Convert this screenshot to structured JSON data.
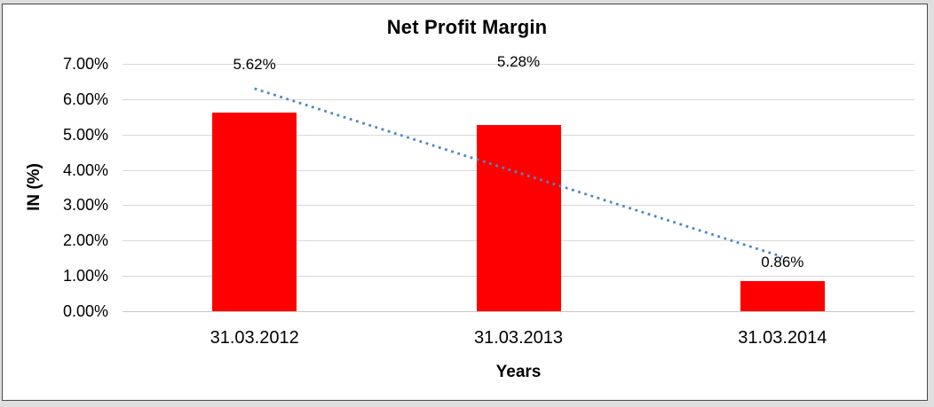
{
  "chart_data": {
    "type": "bar",
    "title": "Net Profit Margin",
    "xlabel": "Years",
    "ylabel": "IN (%)",
    "categories": [
      "31.03.2012",
      "31.03.2013",
      "31.03.2014"
    ],
    "values": [
      5.62,
      5.28,
      0.86
    ],
    "data_labels": [
      "5.62%",
      "5.28%",
      "0.86%"
    ],
    "ylim": [
      0,
      7
    ],
    "ytick_step": 1,
    "ytick_labels": [
      "0.00%",
      "1.00%",
      "2.00%",
      "3.00%",
      "4.00%",
      "5.00%",
      "6.00%",
      "7.00%"
    ],
    "grid": true,
    "legend_position": "none",
    "bar_color": "#ff0000",
    "gridline_color": "#d9d9d9",
    "trendline": {
      "type": "linear",
      "style": "dotted",
      "color": "#4f86c6",
      "start_value": 6.3,
      "end_value": 1.54
    }
  }
}
